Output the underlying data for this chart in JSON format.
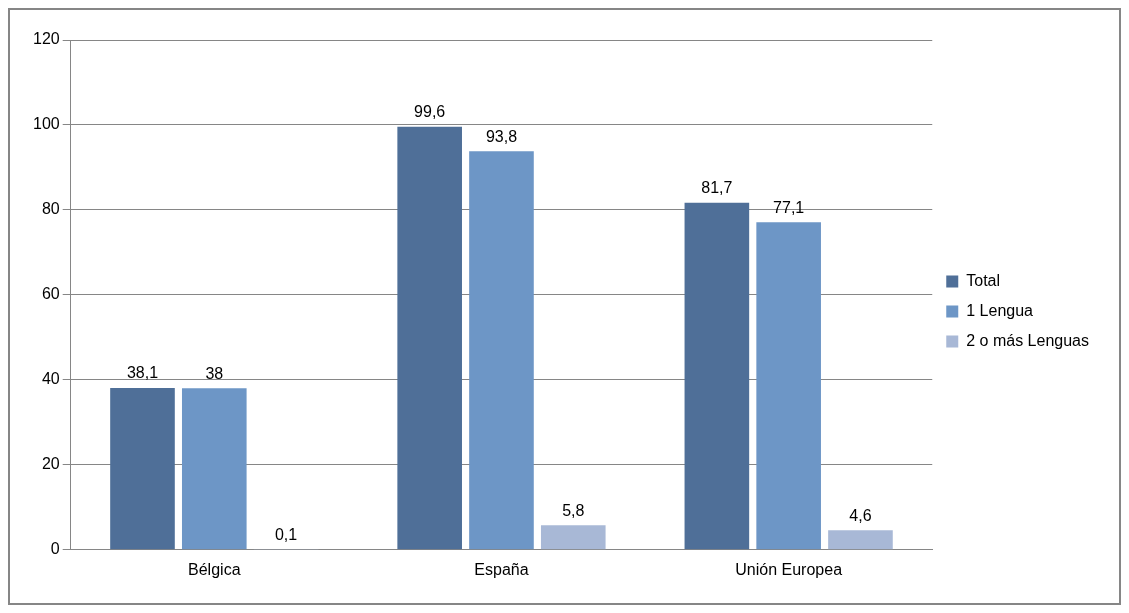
{
  "chart_data": {
    "type": "bar",
    "categories": [
      "Bélgica",
      "España",
      "Unión Europea"
    ],
    "series": [
      {
        "name": "Total",
        "color": "#4f6f98",
        "values": [
          38.1,
          99.6,
          81.7
        ],
        "value_labels": [
          "38,1",
          "99,6",
          "81,7"
        ]
      },
      {
        "name": "1 Lengua",
        "color": "#6d96c6",
        "values": [
          38,
          93.8,
          77.1
        ],
        "value_labels": [
          "38",
          "93,8",
          "77,1"
        ]
      },
      {
        "name": "2 o más Lenguas",
        "color": "#a8b8d6",
        "values": [
          0.1,
          5.8,
          4.6
        ],
        "value_labels": [
          "0,1",
          "5,8",
          "4,6"
        ]
      }
    ],
    "ylim": [
      0,
      120
    ],
    "yticks": [
      0,
      20,
      40,
      60,
      80,
      100,
      120
    ],
    "grid": "y",
    "legend": "right"
  }
}
